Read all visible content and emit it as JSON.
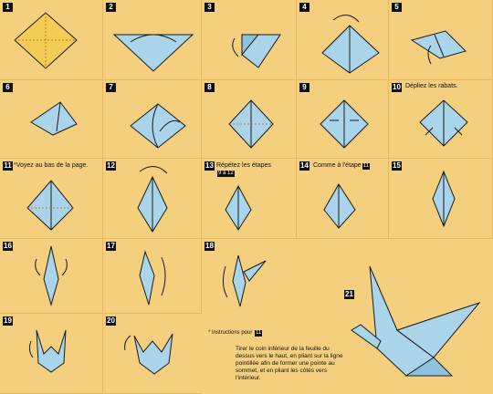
{
  "steps": [
    {
      "n": "1"
    },
    {
      "n": "2"
    },
    {
      "n": "3"
    },
    {
      "n": "4"
    },
    {
      "n": "5"
    },
    {
      "n": "6"
    },
    {
      "n": "7"
    },
    {
      "n": "8"
    },
    {
      "n": "9"
    },
    {
      "n": "10",
      "caption": "Dépliez les rabats."
    },
    {
      "n": "11",
      "caption": "*Voyez au bas de la page."
    },
    {
      "n": "12"
    },
    {
      "n": "13",
      "caption": "Répétez les étapes",
      "caption_ref": "9 à 12"
    },
    {
      "n": "14",
      "caption": "Comme à l'étape",
      "caption_ref": "11"
    },
    {
      "n": "15"
    },
    {
      "n": "16"
    },
    {
      "n": "17"
    },
    {
      "n": "18"
    },
    {
      "n": "19"
    },
    {
      "n": "20"
    },
    {
      "n": "21"
    }
  ],
  "instructions": {
    "heading": "* Instructions pour",
    "heading_ref": "11",
    "body": "Tirer le coin inférieur de la feuille du dessus vers le haut, en pliant sur la ligne pointillée afin de former une pointe au sommet, et en pliant les côtés vers l'intérieur."
  },
  "colors": {
    "background": "#f4cf7d",
    "paper_blue": "#a9d4ea",
    "paper_yellow": "#f3cc55",
    "line": "#1a1a1a",
    "fold_line": "#c07a1a"
  }
}
